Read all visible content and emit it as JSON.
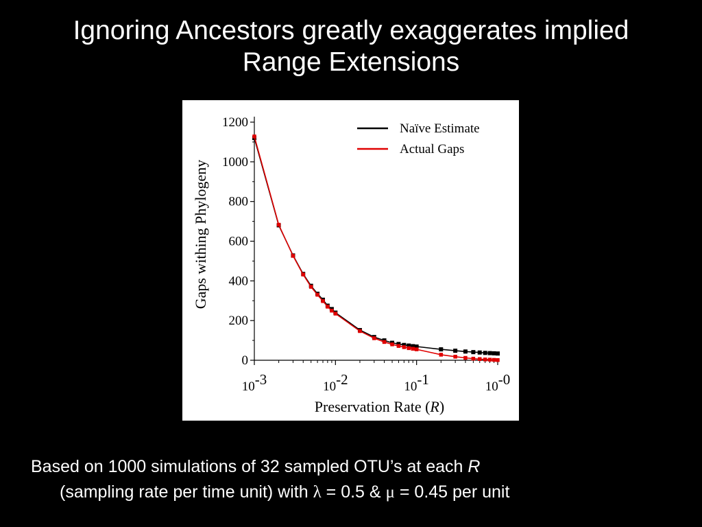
{
  "slide": {
    "title_line1": "Ignoring Ancestors greatly exaggerates implied",
    "title_line2": "Range Extensions"
  },
  "caption": {
    "line1_text": "Based on 1000 simulations of 32 sampled OTU’s at each ",
    "line1_italic": "R",
    "line2_text_a": "(sampling rate per time unit) with ",
    "lambda_symbol": "λ",
    "line2_text_b": " = 0.5 & ",
    "mu_symbol": "μ",
    "line2_text_c": " = 0.45 per unit"
  },
  "chart_data": {
    "type": "line",
    "x_scale": "log",
    "xlim": [
      0.001,
      1
    ],
    "ylim": [
      0,
      1200
    ],
    "ylabel": "Gaps withing Phylogeny",
    "xlabel_text": "Preservation Rate (",
    "xlabel_italic": "R",
    "xlabel_close": ")",
    "y_ticks": [
      "0",
      "200",
      "400",
      "600",
      "800",
      "1000",
      "1200"
    ],
    "x_ticks": [
      {
        "base": "10",
        "exp": "-3"
      },
      {
        "base": "10",
        "exp": "-2"
      },
      {
        "base": "10",
        "exp": "-1"
      },
      {
        "base": "10",
        "exp": "-0"
      }
    ],
    "legend_position": "top-right",
    "series": [
      {
        "name": "Naïve Estimate",
        "color": "#000000",
        "points": [
          [
            0.001,
            1120
          ],
          [
            0.002,
            680
          ],
          [
            0.003,
            528
          ],
          [
            0.004,
            435
          ],
          [
            0.005,
            375
          ],
          [
            0.006,
            335
          ],
          [
            0.007,
            305
          ],
          [
            0.008,
            275
          ],
          [
            0.009,
            258
          ],
          [
            0.01,
            240
          ],
          [
            0.02,
            152
          ],
          [
            0.03,
            117
          ],
          [
            0.04,
            100
          ],
          [
            0.05,
            88
          ],
          [
            0.06,
            82
          ],
          [
            0.07,
            77
          ],
          [
            0.08,
            74
          ],
          [
            0.09,
            71
          ],
          [
            0.1,
            69
          ],
          [
            0.2,
            55
          ],
          [
            0.3,
            48
          ],
          [
            0.4,
            44
          ],
          [
            0.5,
            41
          ],
          [
            0.6,
            39
          ],
          [
            0.7,
            37
          ],
          [
            0.8,
            36
          ],
          [
            0.9,
            35
          ],
          [
            1.0,
            34
          ]
        ]
      },
      {
        "name": "Actual Gaps",
        "color": "#e00000",
        "points": [
          [
            0.001,
            1128
          ],
          [
            0.002,
            683
          ],
          [
            0.003,
            526
          ],
          [
            0.004,
            432
          ],
          [
            0.005,
            370
          ],
          [
            0.006,
            330
          ],
          [
            0.007,
            298
          ],
          [
            0.008,
            270
          ],
          [
            0.009,
            250
          ],
          [
            0.01,
            235
          ],
          [
            0.02,
            147
          ],
          [
            0.03,
            111
          ],
          [
            0.04,
            92
          ],
          [
            0.05,
            80
          ],
          [
            0.06,
            72
          ],
          [
            0.07,
            66
          ],
          [
            0.08,
            61
          ],
          [
            0.09,
            58
          ],
          [
            0.1,
            55
          ],
          [
            0.2,
            28
          ],
          [
            0.3,
            18
          ],
          [
            0.4,
            12
          ],
          [
            0.5,
            8
          ],
          [
            0.6,
            6
          ],
          [
            0.7,
            4
          ],
          [
            0.8,
            3
          ],
          [
            0.9,
            2
          ],
          [
            1.0,
            1
          ]
        ]
      }
    ]
  }
}
